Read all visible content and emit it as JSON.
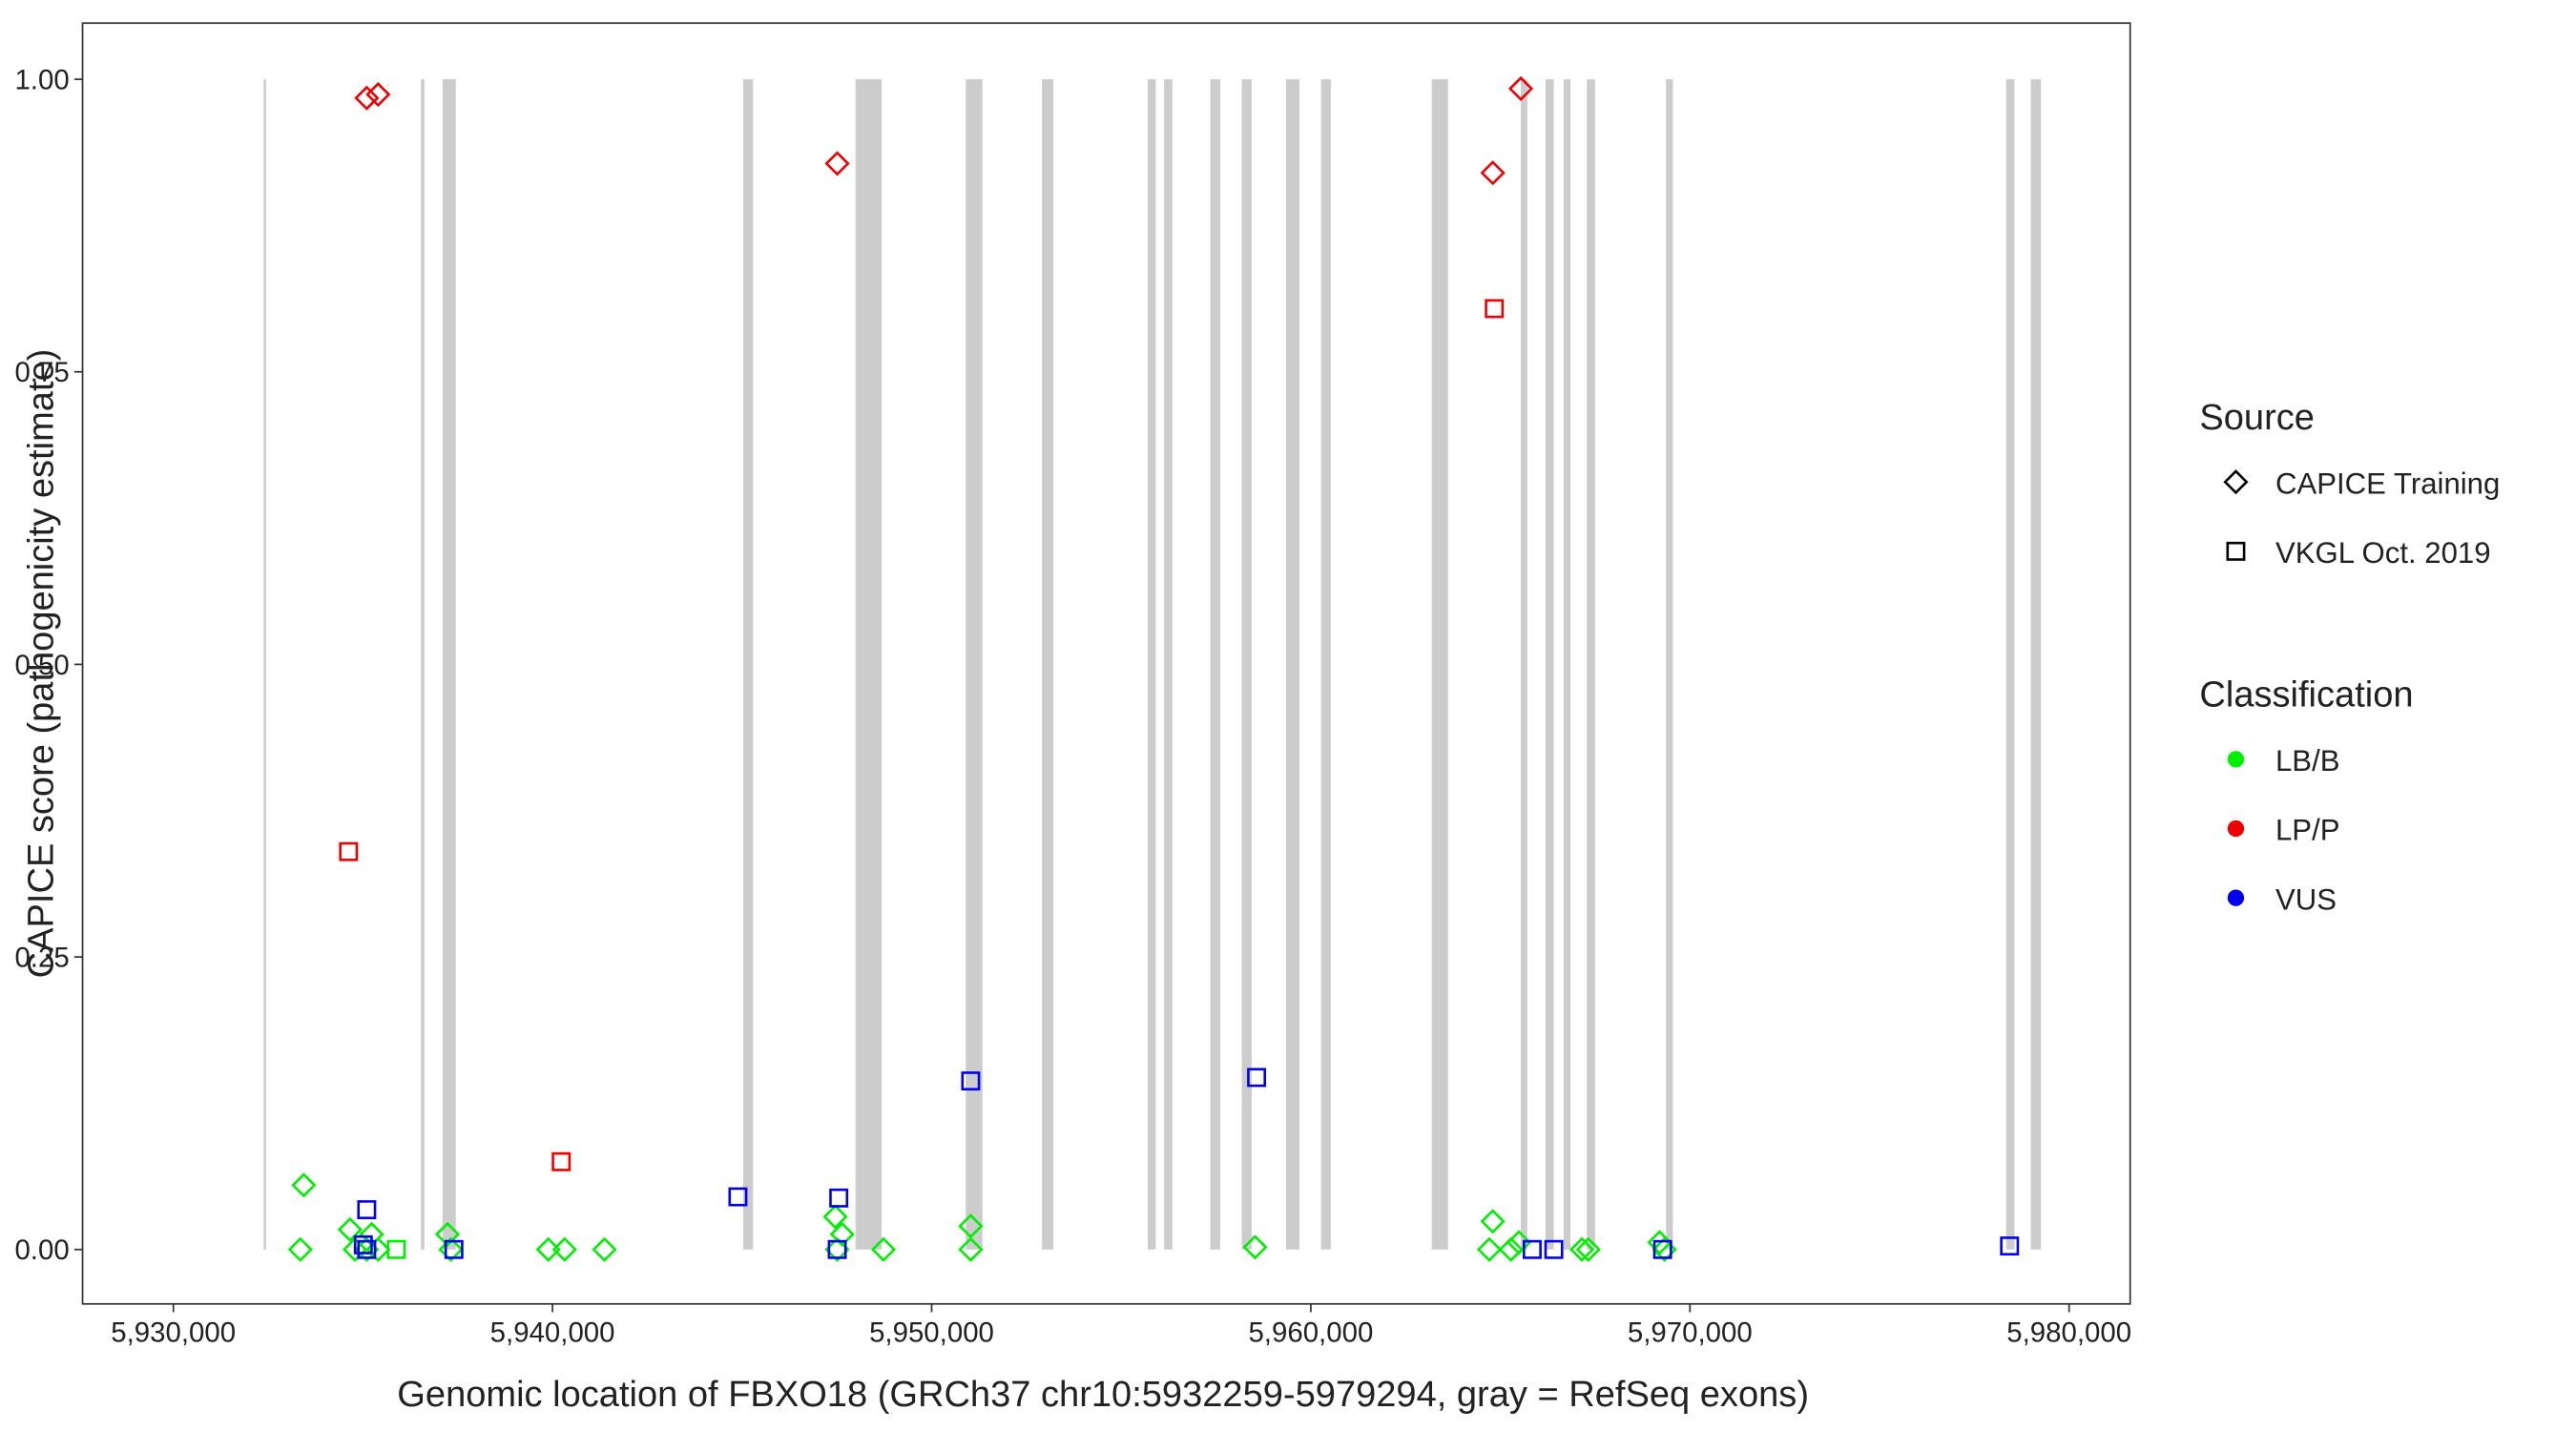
{
  "chart_data": {
    "type": "scatter",
    "x_label": "Genomic location of FBXO18 (GRCh37 chr10:5932259-5979294, gray = RefSeq exons)",
    "y_label": "CAPICE score (pathogenicity estimate)",
    "xlim": [
      5927605,
      5981611
    ],
    "ylim": [
      -0.0465,
      1.048
    ],
    "xticks": [
      {
        "value": 5930000,
        "label": "5,930,000"
      },
      {
        "value": 5940000,
        "label": "5,940,000"
      },
      {
        "value": 5950000,
        "label": "5,950,000"
      },
      {
        "value": 5960000,
        "label": "5,960,000"
      },
      {
        "value": 5970000,
        "label": "5,970,000"
      },
      {
        "value": 5980000,
        "label": "5,980,000"
      }
    ],
    "yticks": [
      {
        "value": 0,
        "label": "0.00"
      },
      {
        "value": 0.25,
        "label": "0.25"
      },
      {
        "value": 0.5,
        "label": "0.50"
      },
      {
        "value": 0.75,
        "label": "0.75"
      },
      {
        "value": 1,
        "label": "1.00"
      }
    ],
    "exon_color": "#cccccc",
    "exon_ylim": [
      0,
      1
    ],
    "exons": [
      [
        5932380,
        5932440
      ],
      [
        5936530,
        5936620
      ],
      [
        5937100,
        5937450
      ],
      [
        5945030,
        5945290
      ],
      [
        5947990,
        5948680
      ],
      [
        5950900,
        5951340
      ],
      [
        5952910,
        5953210
      ],
      [
        5955700,
        5955910
      ],
      [
        5956130,
        5956350
      ],
      [
        5957350,
        5957610
      ],
      [
        5958180,
        5958440
      ],
      [
        5959350,
        5959700
      ],
      [
        5960270,
        5960530
      ],
      [
        5963190,
        5963620
      ],
      [
        5965540,
        5965710
      ],
      [
        5966190,
        5966410
      ],
      [
        5966670,
        5966850
      ],
      [
        5967280,
        5967500
      ],
      [
        5969370,
        5969550
      ],
      [
        5978340,
        5978560
      ],
      [
        5978990,
        5979260
      ]
    ],
    "source_title": "Source",
    "class_title": "Classification",
    "classifications": [
      {
        "name": "LB/B",
        "color": "#00ee00"
      },
      {
        "name": "LP/P",
        "color": "#ee0000"
      },
      {
        "name": "VUS",
        "color": "#0000ee"
      }
    ],
    "sources": [
      {
        "name": "CAPICE Training",
        "shape": "diamond",
        "x": [
          5935100,
          5935400,
          5947510,
          5964800,
          5965540,
          5933440,
          5933350,
          5934660,
          5934790,
          5935100,
          5935400,
          5935230,
          5937230,
          5937320,
          5939890,
          5940320,
          5941370,
          5947460,
          5947510,
          5947640,
          5948730,
          5951030,
          5951030,
          5958530,
          5964800,
          5964710,
          5965280,
          5965490,
          5967150,
          5967320,
          5969200,
          5969330
        ],
        "y": [
          0.984,
          0.987,
          0.928,
          0.92,
          0.992,
          0.055,
          0,
          0.017,
          0,
          0,
          0,
          0.013,
          0.013,
          0,
          0,
          0,
          0,
          0.028,
          0,
          0.013,
          0,
          0.02,
          0,
          0.002,
          0.024,
          0,
          0,
          0.006,
          0,
          0,
          0.006,
          0
        ],
        "class": [
          1,
          1,
          1,
          1,
          1,
          0,
          0,
          0,
          0,
          0,
          0,
          0,
          0,
          0,
          0,
          0,
          0,
          0,
          0,
          0,
          0,
          0,
          0,
          0,
          0,
          0,
          0,
          0,
          0,
          0,
          0,
          0
        ]
      },
      {
        "name": "VKGL Oct. 2019",
        "shape": "square",
        "x": [
          5934620,
          5940230,
          5964840,
          5935100,
          5935010,
          5935100,
          5937400,
          5944890,
          5947550,
          5947510,
          5951030,
          5958570,
          5965840,
          5966410,
          5969280,
          5978430,
          5935880
        ],
        "y": [
          0.34,
          0.075,
          0.804,
          0.034,
          0.004,
          0,
          0,
          0.045,
          0.044,
          0,
          0.144,
          0.147,
          0,
          0,
          0,
          0.003,
          0
        ],
        "class": [
          1,
          1,
          1,
          2,
          2,
          2,
          2,
          2,
          2,
          2,
          2,
          2,
          2,
          2,
          2,
          2,
          0
        ]
      }
    ]
  }
}
